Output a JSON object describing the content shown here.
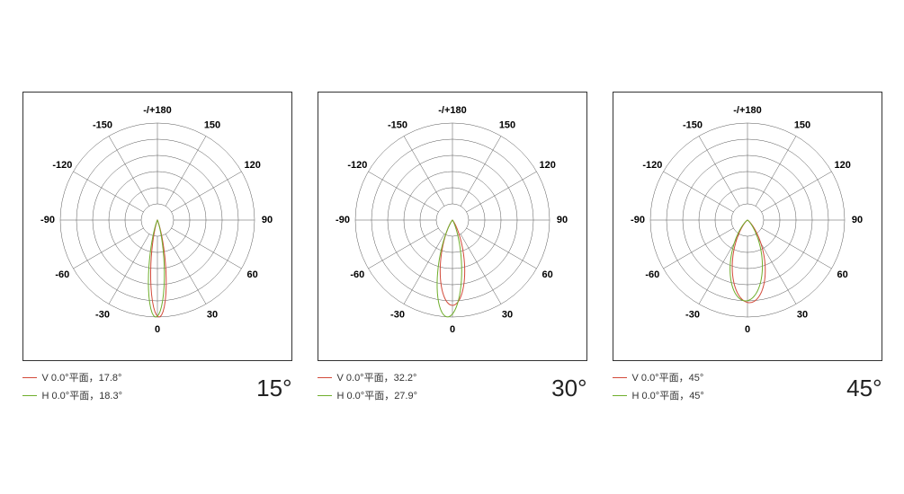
{
  "background_color": "#ffffff",
  "frame_border_color": "#333333",
  "grid_color": "#555555",
  "grid_stroke_width": 0.5,
  "label_color": "#000000",
  "label_fontsize": 11,
  "label_fontweight": 700,
  "big_label_fontsize": 26,
  "big_label_color": "#222222",
  "legend_fontsize": 11,
  "polar_radii": [
    18,
    36,
    54,
    72,
    90,
    108
  ],
  "polar_max_radius": 108,
  "polar_center_radius": 18,
  "angle_spokes_deg": [
    -180,
    -150,
    -120,
    -90,
    -60,
    -30,
    0,
    30,
    60,
    90,
    120,
    150
  ],
  "angle_labels": [
    {
      "text": "-/+180",
      "angle": 180
    },
    {
      "text": "-150",
      "angle": -150
    },
    {
      "text": "150",
      "angle": 150
    },
    {
      "text": "-120",
      "angle": -120
    },
    {
      "text": "120",
      "angle": 120
    },
    {
      "text": "-90",
      "angle": -90
    },
    {
      "text": "90",
      "angle": 90
    },
    {
      "text": "-60",
      "angle": -60
    },
    {
      "text": "60",
      "angle": 60
    },
    {
      "text": "-30",
      "angle": -30
    },
    {
      "text": "30",
      "angle": 30
    },
    {
      "text": "0",
      "angle": 0
    }
  ],
  "series_colors": {
    "V": "#d24a3a",
    "H": "#6fae2c"
  },
  "series_stroke_width": 1.0,
  "charts": [
    {
      "big_label": "15°",
      "legend": [
        {
          "series": "V",
          "text": "V 0.0°平面，17.8°"
        },
        {
          "series": "H",
          "text": "H 0.0°平面，18.3°"
        }
      ],
      "lobes": [
        {
          "series": "V",
          "half_angle_deg": 8.9,
          "peak_r": 108,
          "skew_deg": 1.0
        },
        {
          "series": "H",
          "half_angle_deg": 9.15,
          "peak_r": 108,
          "skew_deg": -1.0
        }
      ]
    },
    {
      "big_label": "30°",
      "legend": [
        {
          "series": "V",
          "text": "V 0.0°平面，32.2°"
        },
        {
          "series": "H",
          "text": "H 0.0°平面，27.9°"
        }
      ],
      "lobes": [
        {
          "series": "V",
          "half_angle_deg": 16.1,
          "peak_r": 95,
          "skew_deg": 0
        },
        {
          "series": "H",
          "half_angle_deg": 13.95,
          "peak_r": 108,
          "skew_deg": -3.0
        }
      ]
    },
    {
      "big_label": "45°",
      "legend": [
        {
          "series": "V",
          "text": "V 0.0°平面，45°"
        },
        {
          "series": "H",
          "text": "H 0.0°平面，45°"
        }
      ],
      "lobes": [
        {
          "series": "V",
          "half_angle_deg": 22.5,
          "peak_r": 92,
          "skew_deg": 1.5
        },
        {
          "series": "H",
          "half_angle_deg": 22.5,
          "peak_r": 90,
          "skew_deg": -1.5
        }
      ]
    }
  ]
}
